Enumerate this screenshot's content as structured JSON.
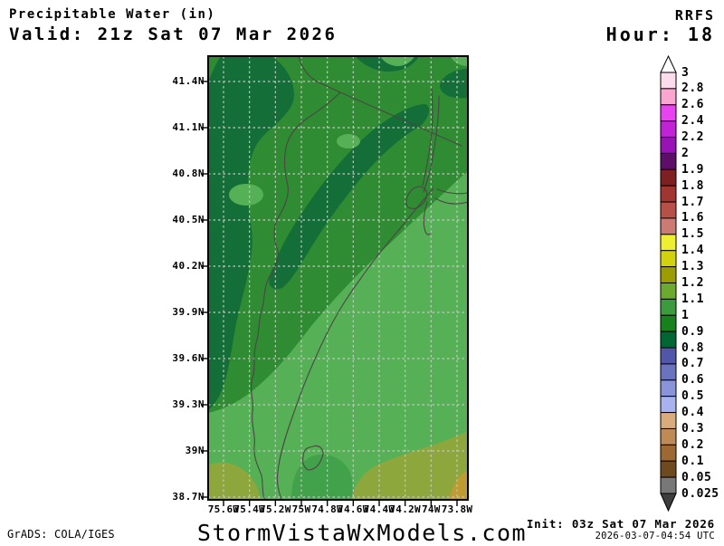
{
  "header": {
    "title": "Precipitable Water (in)",
    "valid": "Valid: 21z Sat 07 Mar 2026",
    "model": "RRFS",
    "hour": "Hour: 18"
  },
  "footer": {
    "grads": "GrADS: COLA/IGES",
    "site": "StormVistaWxModels.com",
    "init": "Init: 03z Sat 07 Mar 2026",
    "generated": "2026-03-07-04:54 UTC"
  },
  "axes": {
    "lat_labels": [
      "41.4N",
      "41.1N",
      "40.8N",
      "40.5N",
      "40.2N",
      "39.9N",
      "39.6N",
      "39.3N",
      "39N",
      "38.7N"
    ],
    "lon_labels": [
      "75.6W",
      "75.4W",
      "75.2W",
      "75W",
      "74.8W",
      "74.6W",
      "74.4W",
      "74.2W",
      "74W",
      "73.8W"
    ]
  },
  "colorbar": {
    "levels": [
      "3",
      "2.8",
      "2.6",
      "2.4",
      "2.2",
      "2",
      "1.9",
      "1.8",
      "1.7",
      "1.6",
      "1.5",
      "1.4",
      "1.3",
      "1.2",
      "1.1",
      "1",
      "0.9",
      "0.8",
      "0.7",
      "0.6",
      "0.5",
      "0.4",
      "0.3",
      "0.2",
      "0.1",
      "0.05",
      "0.025"
    ],
    "colors": [
      "#fcdcec",
      "#fba6d0",
      "#e743ee",
      "#c122d6",
      "#9812b6",
      "#5c0e68",
      "#7e1f22",
      "#a13530",
      "#b65048",
      "#cc7a74",
      "#efef31",
      "#d2d20c",
      "#9c9c00",
      "#6baa2f",
      "#3c9b3c",
      "#17811c",
      "#006633",
      "#5156a8",
      "#6a74be",
      "#8a94d8",
      "#a8b2ee",
      "#d8ac7c",
      "#be8a56",
      "#9e6832",
      "#6e4a1e",
      "#787878"
    ],
    "overflow_top_color": "#ffffff",
    "overflow_bottom_color": "#3e3e3e"
  },
  "map_colors": {
    "base_green": "#2f8c33",
    "dark_green": "#146e38",
    "light_green": "#56b156",
    "bay_green": "#42a14b",
    "olive": "#8ea73d",
    "tan": "#bf9c2f",
    "boundary_line": "#4b4646",
    "grid_line": "#c6c6c6"
  },
  "chart_data": {
    "type": "heatmap",
    "title": "Precipitable Water (in)",
    "model": "RRFS",
    "valid_time": "21z Sat 07 Mar 2026",
    "forecast_hour": 18,
    "init_time": "03z Sat 07 Mar 2026",
    "generated_time": "2026-03-07-04:54 UTC",
    "units": "in",
    "lat_ticks": [
      "41.4N",
      "41.1N",
      "40.8N",
      "40.5N",
      "40.2N",
      "39.9N",
      "39.6N",
      "39.3N",
      "39N",
      "38.7N"
    ],
    "lon_ticks": [
      "75.6W",
      "75.4W",
      "75.2W",
      "75W",
      "74.8W",
      "74.6W",
      "74.4W",
      "74.2W",
      "74W",
      "73.8W"
    ],
    "scale_levels": [
      3,
      2.8,
      2.6,
      2.4,
      2.2,
      2,
      1.9,
      1.8,
      1.7,
      1.6,
      1.5,
      1.4,
      1.3,
      1.2,
      1.1,
      1,
      0.9,
      0.8,
      0.7,
      0.6,
      0.5,
      0.4,
      0.3,
      0.2,
      0.1,
      0.05,
      0.025
    ],
    "regions": [
      {
        "band_in": "0.8-0.9",
        "shade": "dark green",
        "area": "northwest quadrant along left edge, north-center blob, northeast edge blob, and a diagonal band from center toward the upper right"
      },
      {
        "band_in": "0.9-1.1",
        "shade": "medium green",
        "area": "base field covering most of the north and center of the domain"
      },
      {
        "band_in": "1.1-1.2",
        "shade": "light green",
        "area": "entire southeast half below a NW-SE diagonal, plus small spots near center and the top edge"
      },
      {
        "band_in": "1.2-1.3",
        "shade": "olive green",
        "area": "bottom-left corner and broad band along the bottom-right/south edge"
      },
      {
        "band_in": "1.3-1.4",
        "shade": "tan-yellow",
        "area": "extreme bottom-right corner"
      }
    ],
    "geography": "New Jersey region with state borders, Delaware River, Atlantic coastline, NY harbor and western Long Island outlines",
    "legend_position": "right",
    "grid": true
  }
}
